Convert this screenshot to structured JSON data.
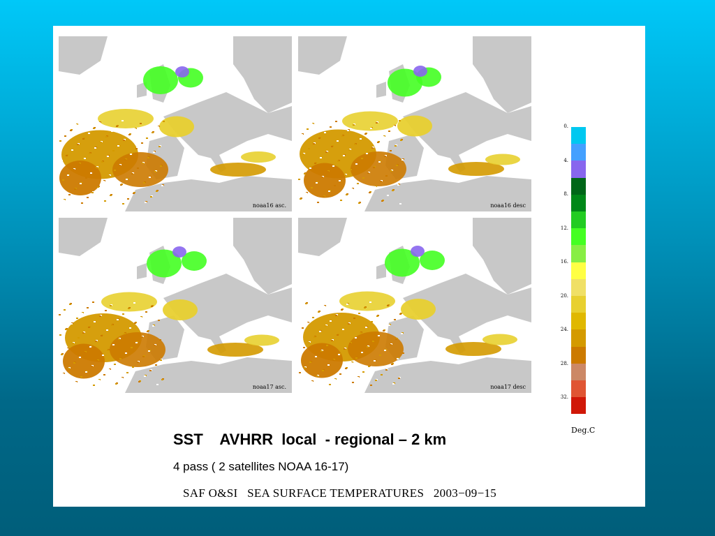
{
  "maps": [
    {
      "id": "noaa16-asc",
      "label": "noaa16 asc."
    },
    {
      "id": "noaa16-desc",
      "label": "noaa16 desc"
    },
    {
      "id": "noaa17-asc",
      "label": "noaa17 asc."
    },
    {
      "id": "noaa17-desc",
      "label": "noaa17 desc"
    }
  ],
  "colorbar": {
    "unit": "Deg.C",
    "ticks": [
      "0.",
      "4.",
      "8.",
      "12.",
      "16.",
      "20.",
      "24.",
      "28.",
      "32."
    ],
    "colors": [
      "#00c8f0",
      "#44a0ff",
      "#8866ee",
      "#006618",
      "#008818",
      "#22cc22",
      "#44ff22",
      "#88ee44",
      "#ffff44",
      "#f0e066",
      "#e8d030",
      "#e0b800",
      "#d49a00",
      "#cc7a00",
      "#cc8866",
      "#e05533",
      "#d01808"
    ]
  },
  "text": {
    "title": "SST    AVHRR  local  - regional – 2 km",
    "subtitle": "4 pass ( 2 satellites NOAA 16-17)",
    "caption": "SAF O&SI   SEA SURFACE TEMPERATURES   2003−09−15"
  },
  "style": {
    "land": "#c8c8c8",
    "colors": {
      "cold": "#44ff22",
      "mid": "#e8d030",
      "warm": "#d49a00",
      "hot": "#cc7a00",
      "ice": "#8866ee"
    }
  }
}
